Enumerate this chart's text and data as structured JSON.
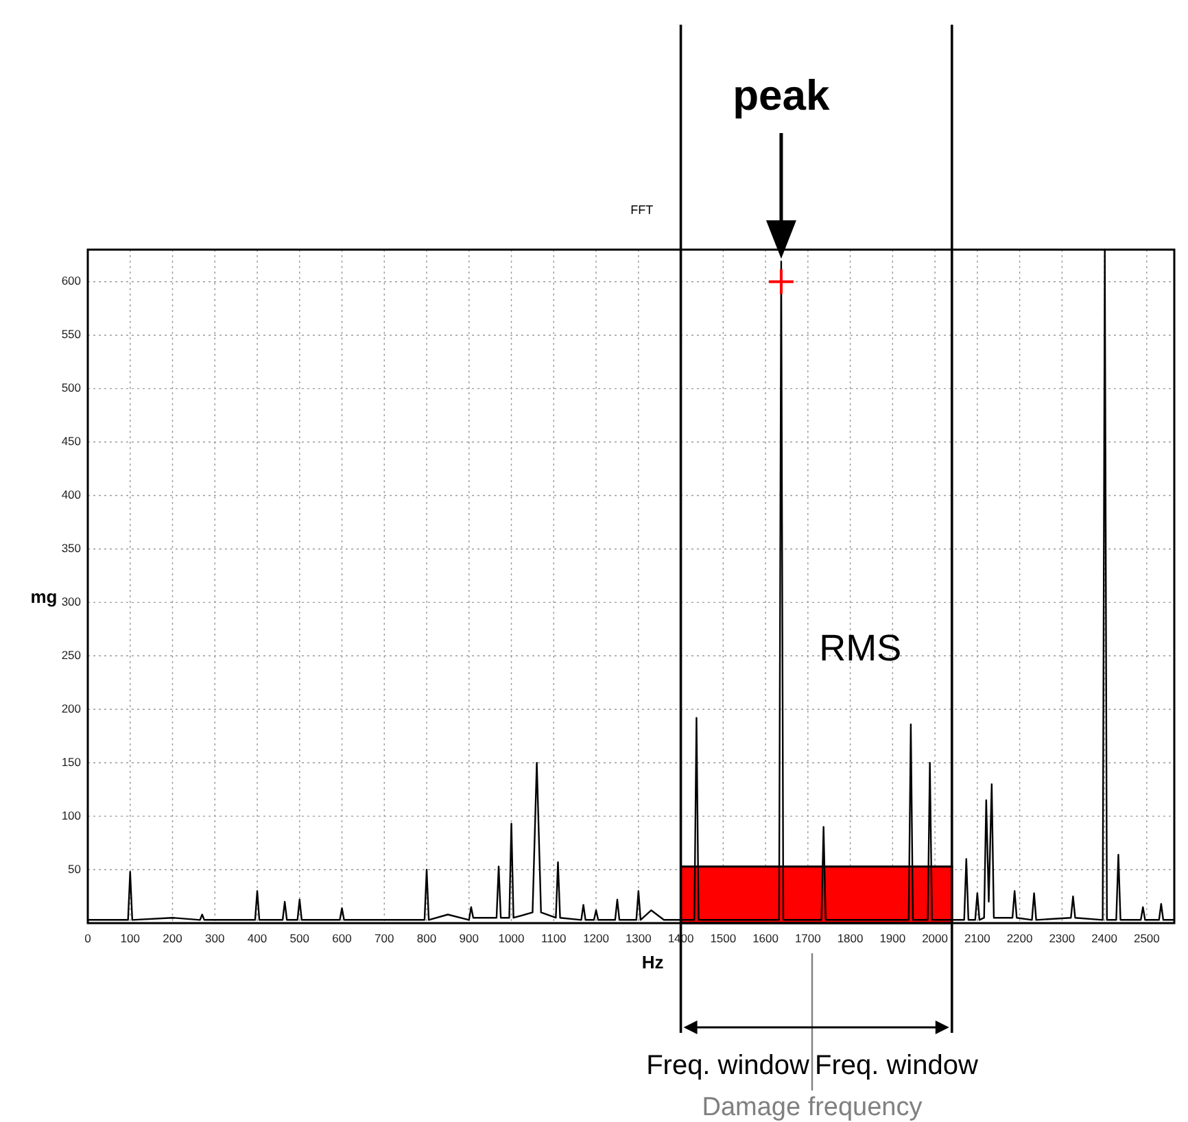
{
  "chart_data": {
    "type": "line",
    "title": "FFT",
    "xlabel": "Hz",
    "ylabel": "mg",
    "xlim": [
      0,
      2565
    ],
    "xticks": [
      0,
      100,
      200,
      300,
      400,
      500,
      600,
      700,
      800,
      900,
      1000,
      1100,
      1200,
      1300,
      1400,
      1500,
      1600,
      1700,
      1800,
      1900,
      2000,
      2100,
      2200,
      2300,
      2400,
      2500
    ],
    "ylim": [
      0,
      630
    ],
    "yticks": [
      50,
      100,
      150,
      200,
      250,
      300,
      350,
      400,
      450,
      500,
      550,
      600
    ],
    "grid": true,
    "series": [
      {
        "type": "area",
        "name": "RMS",
        "color": "#ff0000",
        "x": [
          1400,
          1400,
          2040,
          2040
        ],
        "values": [
          0,
          53,
          53,
          0
        ]
      },
      {
        "type": "line",
        "color": "#000000",
        "x": [
          0,
          95,
          100,
          105,
          200,
          265,
          270,
          275,
          395,
          400,
          405,
          460,
          465,
          470,
          495,
          500,
          505,
          595,
          600,
          605,
          700,
          795,
          800,
          805,
          850,
          900,
          905,
          910,
          965,
          970,
          975,
          995,
          1000,
          1005,
          1050,
          1060,
          1070,
          1105,
          1110,
          1115,
          1165,
          1170,
          1175,
          1195,
          1200,
          1205,
          1245,
          1250,
          1255,
          1295,
          1300,
          1305,
          1330,
          1360,
          1432,
          1437,
          1442,
          1632,
          1637,
          1642,
          1732,
          1737,
          1742,
          1938,
          1943,
          1948,
          1983,
          1988,
          1993,
          2069,
          2074,
          2079,
          2095,
          2100,
          2105,
          2116,
          2121,
          2127,
          2134,
          2139,
          2183,
          2188,
          2193,
          2229,
          2234,
          2239,
          2321,
          2326,
          2331,
          2396,
          2401,
          2406,
          2428,
          2433,
          2438,
          2486,
          2491,
          2496,
          2529,
          2534,
          2539,
          2565
        ],
        "values": [
          3,
          3,
          48,
          3,
          5,
          3,
          8,
          3,
          3,
          30,
          3,
          3,
          20,
          3,
          3,
          22,
          3,
          3,
          14,
          3,
          3,
          3,
          50,
          3,
          8,
          3,
          15,
          5,
          5,
          53,
          5,
          5,
          93,
          5,
          10,
          150,
          10,
          5,
          57,
          5,
          3,
          17,
          3,
          3,
          12,
          3,
          3,
          22,
          3,
          3,
          30,
          3,
          12,
          3,
          3,
          192,
          3,
          3,
          619,
          3,
          3,
          90,
          3,
          3,
          186,
          3,
          3,
          150,
          3,
          3,
          60,
          3,
          3,
          28,
          3,
          5,
          115,
          20,
          130,
          5,
          5,
          30,
          5,
          3,
          28,
          3,
          5,
          25,
          5,
          3,
          630,
          3,
          3,
          64,
          3,
          3,
          15,
          3,
          3,
          18,
          3,
          3
        ]
      },
      {
        "type": "scatter",
        "color": "#ff0000",
        "marker": "cross",
        "x": [
          1637
        ],
        "values": [
          600
        ]
      }
    ],
    "ref_lines": [
      {
        "axis": "x",
        "value": 1400
      },
      {
        "axis": "x",
        "value": 2040
      },
      {
        "axis": "x",
        "value": 1710,
        "label": "Damage frequency",
        "color": "#808080"
      }
    ],
    "annotations": [
      "peak",
      "Freq. window",
      "Freq. window"
    ]
  }
}
